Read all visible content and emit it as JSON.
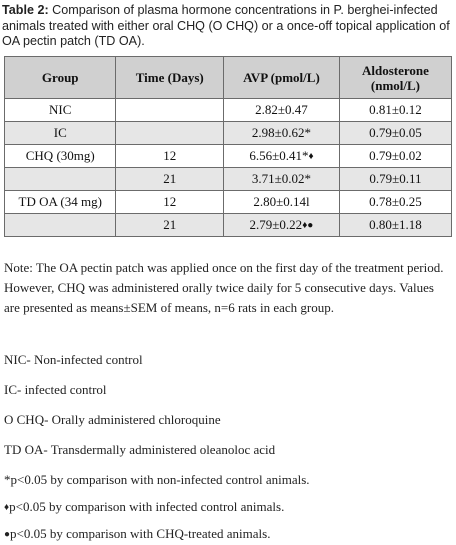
{
  "caption": {
    "label": "Table 2:",
    "text": " Comparison of plasma hormone concentrations in P. berghei-infected animals treated with either oral CHQ (O CHQ) or a once-off topical application of OA pectin patch (TD OA)."
  },
  "table": {
    "headers": {
      "group": "Group",
      "time": "Time (Days)",
      "avp": "AVP (pmol/L)",
      "aldosterone_line1": "Aldosterone",
      "aldosterone_line2": "(nmol/L)"
    },
    "rows": [
      {
        "group": "NIC",
        "time": "",
        "avp": "2.82±0.47",
        "avp_mark": "",
        "aldo": "0.81±0.12"
      },
      {
        "group": "IC",
        "time": "",
        "avp": "2.98±0.62*",
        "avp_mark": "",
        "aldo": "0.79±0.05"
      },
      {
        "group": "CHQ (30mg)",
        "time": "12",
        "avp": "6.56±0.41*",
        "avp_mark": "♦",
        "aldo": "0.79±0.02"
      },
      {
        "group": "",
        "time": "21",
        "avp": "3.71±0.02*",
        "avp_mark": "",
        "aldo": "0.79±0.11"
      },
      {
        "group": "TD OA (34 mg)",
        "time": "12",
        "avp": "2.80±0.14l",
        "avp_mark": "",
        "aldo": "0.78±0.25"
      },
      {
        "group": "",
        "time": "21",
        "avp": "2.79±0.22",
        "avp_mark": "♦●",
        "aldo": "0.80±1.18"
      }
    ]
  },
  "note": "Note: The OA pectin patch was applied once on the first day of the treatment period. However, CHQ was administered orally twice daily for 5 consecutive days. Values are presented as means±SEM of means, n=6 rats in each group.",
  "abbreviations": [
    {
      "symbol": "",
      "text": "NIC- Non-infected control"
    },
    {
      "symbol": "",
      "text": "IC- infected control"
    },
    {
      "symbol": "",
      "text": "O CHQ- Orally administered chloroquine"
    },
    {
      "symbol": "",
      "text": "TD OA- Transdermally administered oleanoloc acid"
    },
    {
      "symbol": "",
      "text": "*p<0.05 by comparison with non-infected control animals."
    },
    {
      "symbol": "♦",
      "text": "p<0.05 by comparison with infected control animals."
    },
    {
      "symbol": "●",
      "text": "p<0.05 by comparison with CHQ-treated animals."
    }
  ]
}
